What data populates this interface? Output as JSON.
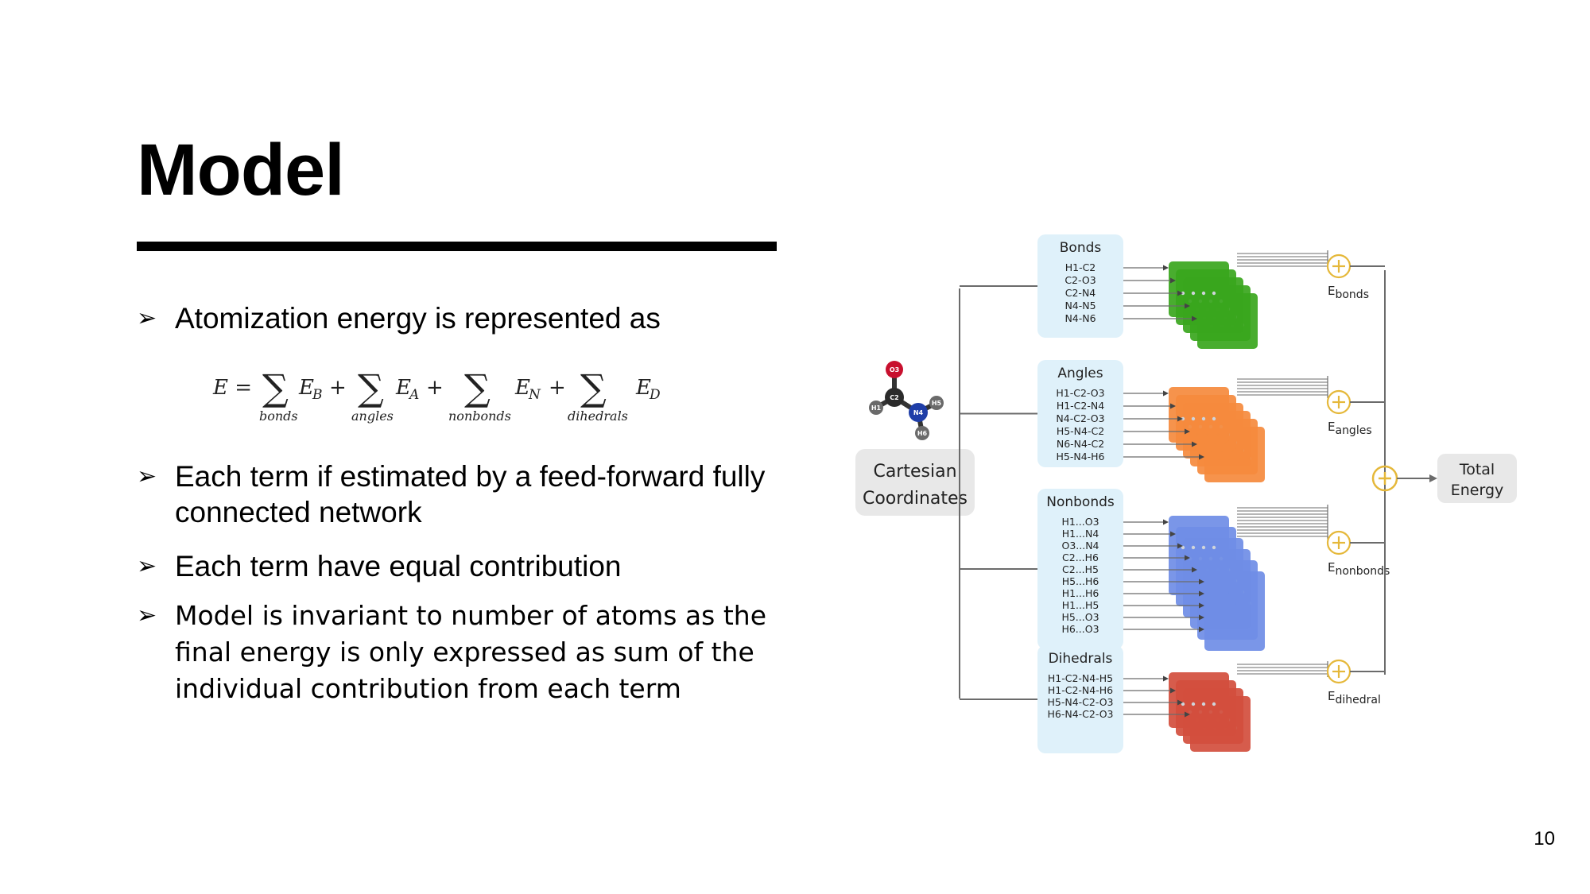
{
  "slide": {
    "title": "Model",
    "page_number": "10"
  },
  "bullets": [
    {
      "text": "Atomization energy is represented as"
    },
    {
      "text": "Each term if estimated by a feed-forward fully connected network"
    },
    {
      "text": "Each term have equal contribution"
    },
    {
      "text": "Model is invariant to number of atoms as the final energy is only expressed as sum of the individual contribution from each term"
    }
  ],
  "formula": {
    "lhs": "E =",
    "terms": [
      {
        "symbol": "E",
        "sub": "B",
        "under": "bonds"
      },
      {
        "symbol": "E",
        "sub": "A",
        "under": "angles"
      },
      {
        "symbol": "E",
        "sub": "N",
        "under": "nonbonds"
      },
      {
        "symbol": "E",
        "sub": "D",
        "under": "dihedrals"
      }
    ]
  },
  "diagram": {
    "input_label_line1": "Cartesian",
    "input_label_line2": "Coordinates",
    "output_label_line1": "Total",
    "output_label_line2": "Energy",
    "molecule_atoms": [
      "O3",
      "C2",
      "H1",
      "N4",
      "H5",
      "H6"
    ],
    "groups": [
      {
        "title": "Bonds",
        "items": [
          "H1-C2",
          "C2-O3",
          "C2-N4",
          "N4-N5",
          "N4-N6"
        ],
        "energy_sub": "bonds",
        "color": "#3aa61d"
      },
      {
        "title": "Angles",
        "items": [
          "H1-C2-O3",
          "H1-C2-N4",
          "N4-C2-O3",
          "H5-N4-C2",
          "N6-N4-C2",
          "H5-N4-H6"
        ],
        "energy_sub": "angles",
        "color": "#f58a3d"
      },
      {
        "title": "Nonbonds",
        "items": [
          "H1...O3",
          "H1...N4",
          "O3...N4",
          "C2...H6",
          "C2...H5",
          "H5...H6",
          "H1...H6",
          "H1...H5",
          "H5...O3",
          "H6...O3"
        ],
        "energy_sub": "nonbonds",
        "color": "#6f8de6"
      },
      {
        "title": "Dihedrals",
        "items": [
          "H1-C2-N4-H5",
          "H1-C2-N4-H6",
          "H5-N4-C2-O3",
          "H6-N4-C2-O3"
        ],
        "energy_sub": "dihedral",
        "color": "#d24e3d"
      }
    ],
    "colors": {
      "box_bg": "#dff1fa",
      "sum_circle": "#e5b83a",
      "line": "#6b6b6b",
      "terminal_bg": "#e8e8e8"
    }
  }
}
